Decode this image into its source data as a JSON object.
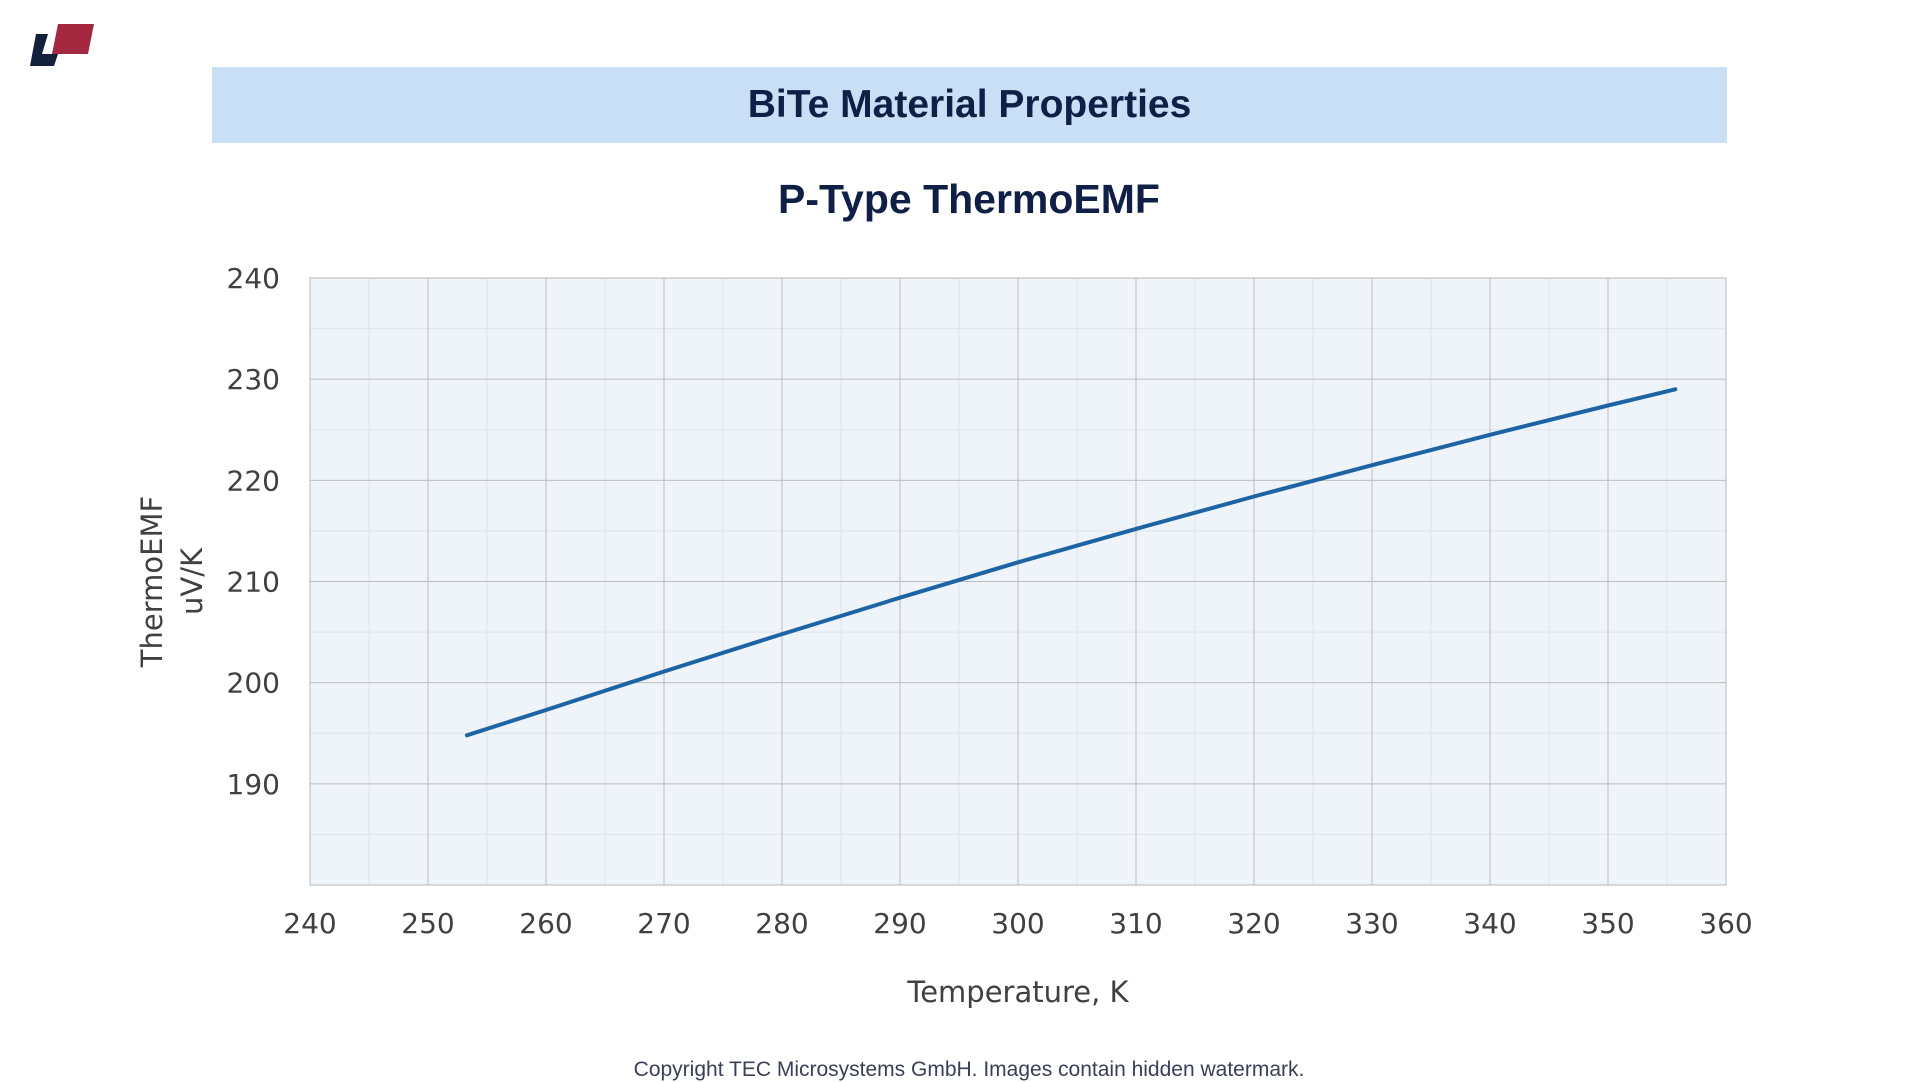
{
  "banner": {
    "title": "BiTe Material Properties"
  },
  "logo": {
    "name": "company-logo",
    "colors": {
      "dark": "#14213d",
      "accent": "#a4283f"
    }
  },
  "chart_data": {
    "type": "line",
    "title": "P-Type  ThermoEMF",
    "xlabel": "Temperature, K",
    "ylabel": [
      "ThermoEMF",
      "uV/K"
    ],
    "xlim": [
      240,
      360
    ],
    "ylim": [
      180,
      240
    ],
    "xticks": [
      240,
      250,
      260,
      270,
      280,
      290,
      300,
      310,
      320,
      330,
      340,
      350,
      360
    ],
    "yticks": [
      190,
      200,
      210,
      220,
      230,
      240
    ],
    "grid": true,
    "series": [
      {
        "name": "ThermoEMF",
        "color": "#1c64a3",
        "x": [
          253.3,
          260,
          270,
          280,
          290,
          300,
          310,
          320,
          330,
          340,
          350,
          355.7
        ],
        "y": [
          194.8,
          197.3,
          201.1,
          204.8,
          208.4,
          211.9,
          215.2,
          218.4,
          221.5,
          224.5,
          227.4,
          229.0
        ]
      }
    ]
  },
  "footer": {
    "copyright": "Copyright TEC Microsystems GmbH. Images contain hidden watermark."
  }
}
